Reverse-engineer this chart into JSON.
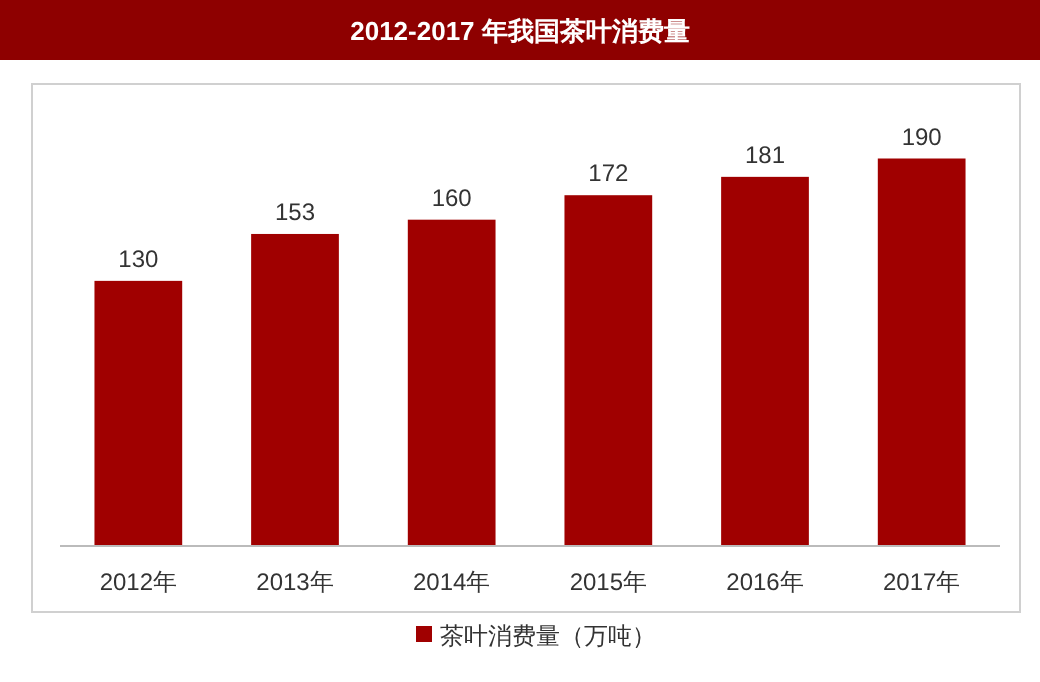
{
  "chart_data": {
    "type": "bar",
    "title": "2012-2017 年我国茶叶消费量",
    "categories": [
      "2012年",
      "2013年",
      "2014年",
      "2015年",
      "2016年",
      "2017年"
    ],
    "series": [
      {
        "name": "茶叶消费量（万吨）",
        "color": "#a00000",
        "values": [
          130,
          153,
          160,
          172,
          181,
          190
        ]
      }
    ],
    "data_labels": true,
    "legend": "bottom"
  }
}
